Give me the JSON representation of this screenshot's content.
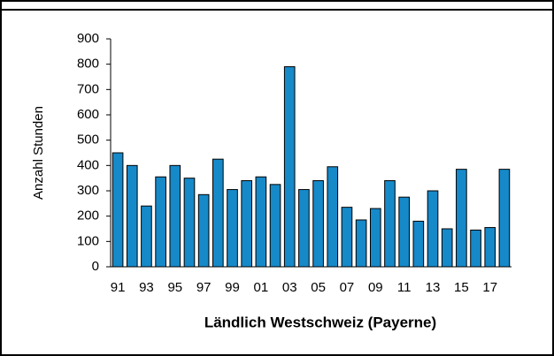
{
  "chart_data": {
    "type": "bar",
    "title": "Ländlich Westschweiz (Payerne)",
    "y_label": "Anzahl Stunden",
    "categories": [
      "91",
      null,
      "93",
      null,
      "95",
      null,
      "97",
      null,
      "99",
      null,
      "01",
      null,
      "03",
      null,
      "05",
      null,
      "07",
      null,
      "09",
      null,
      "11",
      null,
      "13",
      null,
      "15",
      null,
      "17",
      null
    ],
    "values": [
      450,
      400,
      240,
      355,
      400,
      350,
      285,
      425,
      305,
      340,
      355,
      325,
      790,
      305,
      340,
      395,
      235,
      185,
      230,
      340,
      275,
      180,
      300,
      150,
      385,
      145,
      155,
      385
    ],
    "color": "#1689c9",
    "ylim": [
      0,
      900
    ],
    "yticks": [
      0,
      100,
      200,
      300,
      400,
      500,
      600,
      700,
      800,
      900
    ],
    "grid": false
  }
}
